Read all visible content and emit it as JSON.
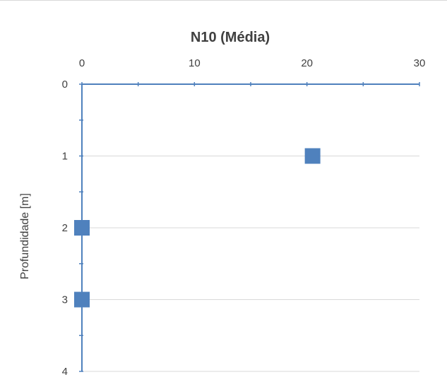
{
  "chart_data": {
    "type": "scatter",
    "title": "N10 (Média)",
    "xlabel": "",
    "ylabel": "Profundidade [m]",
    "x_axis_position": "top",
    "y_axis_reversed": true,
    "xlim": [
      0,
      30
    ],
    "ylim": [
      0,
      4
    ],
    "x_ticks": [
      0,
      10,
      20,
      30
    ],
    "y_ticks": [
      0,
      1,
      2,
      3,
      4
    ],
    "x_tick_labels": [
      "0",
      "10",
      "20",
      "30"
    ],
    "y_tick_labels": [
      "0",
      "1",
      "2",
      "3",
      "4"
    ],
    "grid": "horizontal",
    "legend": "none",
    "marker": "square",
    "series": [
      {
        "points": [
          {
            "x": 20.5,
            "y": 1
          },
          {
            "x": 0,
            "y": 2
          },
          {
            "x": 0,
            "y": 3
          }
        ]
      }
    ]
  },
  "colors": {
    "marker": "#4f81bd",
    "axis": "#4f81bd",
    "grid": "#d9d9d9",
    "text": "#404040"
  }
}
